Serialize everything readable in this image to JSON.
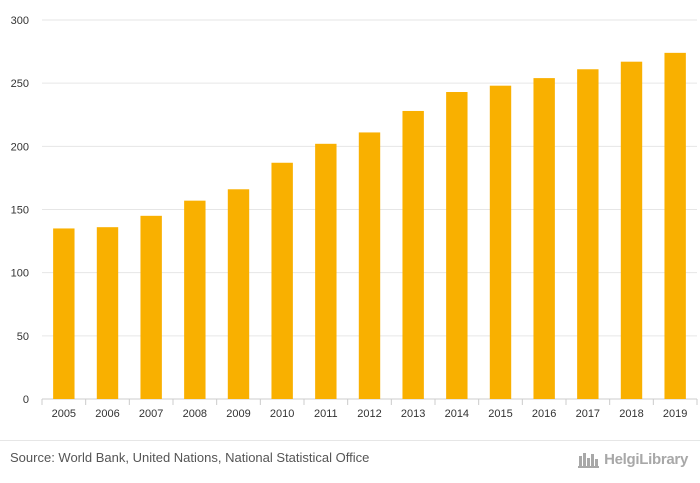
{
  "colors": {
    "bar": "#F9B000",
    "grid": "#e6e6e6",
    "axis": "#cccccc",
    "text": "#333333"
  },
  "chart_data": {
    "type": "bar",
    "title": "",
    "xlabel": "",
    "ylabel": "",
    "categories": [
      "2005",
      "2006",
      "2007",
      "2008",
      "2009",
      "2010",
      "2011",
      "2012",
      "2013",
      "2014",
      "2015",
      "2016",
      "2017",
      "2018",
      "2019"
    ],
    "values": [
      135,
      136,
      145,
      157,
      166,
      187,
      202,
      211,
      228,
      243,
      248,
      254,
      261,
      267,
      274
    ],
    "yticks": [
      0,
      50,
      100,
      150,
      200,
      250,
      300
    ],
    "ylim": [
      0,
      300
    ],
    "grid": true
  },
  "footer": {
    "source": "Source: World Bank, United Nations, National Statistical Office",
    "brand": "HelgiLibrary",
    "brand_icon": "helgi-library-logo-icon"
  }
}
